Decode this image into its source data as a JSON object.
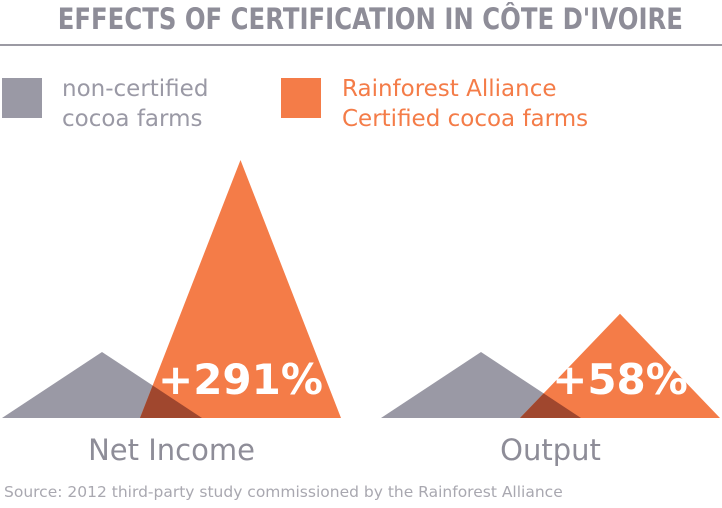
{
  "title": "EFFECTS OF CERTIFICATION IN CÔTE D'IVOIRE",
  "legend": [
    {
      "lines": [
        "non-certified",
        "cocoa farms"
      ],
      "color": "#9a99a5"
    },
    {
      "lines": [
        "Rainforest Alliance",
        "Certified cocoa farms"
      ],
      "color": "#f47c48"
    }
  ],
  "chart_data": {
    "type": "area",
    "series": [
      {
        "name": "non-certified cocoa farms",
        "color": "#9a99a5"
      },
      {
        "name": "Rainforest Alliance Certified cocoa farms",
        "color": "#f47c48"
      }
    ],
    "overlap_color": "#a0472e",
    "groups": [
      {
        "label": "Net Income",
        "annotation": "+291%",
        "values": [
          1,
          3.91
        ]
      },
      {
        "label": "Output",
        "annotation": "+58%",
        "values": [
          1,
          1.58
        ]
      }
    ]
  },
  "source": "Source: 2012 third-party study commissioned by the Rainforest Alliance"
}
